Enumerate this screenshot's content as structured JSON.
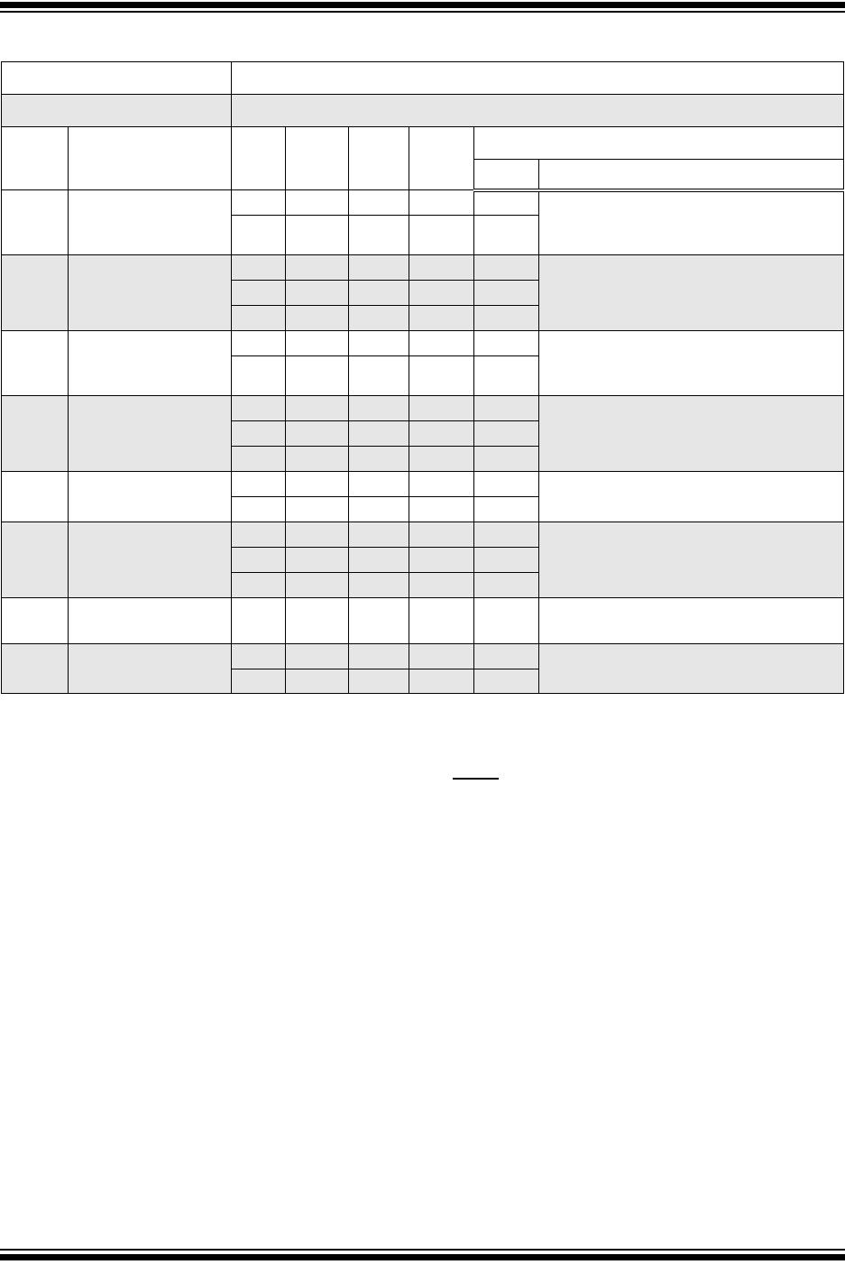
{
  "colors": {
    "rule": "#000000",
    "shaded_row": "#e6e6e6",
    "background": "#ffffff"
  },
  "table": {
    "group_subrows": [
      2,
      3,
      2,
      3,
      2,
      3,
      1,
      2
    ],
    "group_shading": [
      "white",
      "gray",
      "white",
      "gray",
      "white",
      "gray",
      "white",
      "gray"
    ]
  }
}
